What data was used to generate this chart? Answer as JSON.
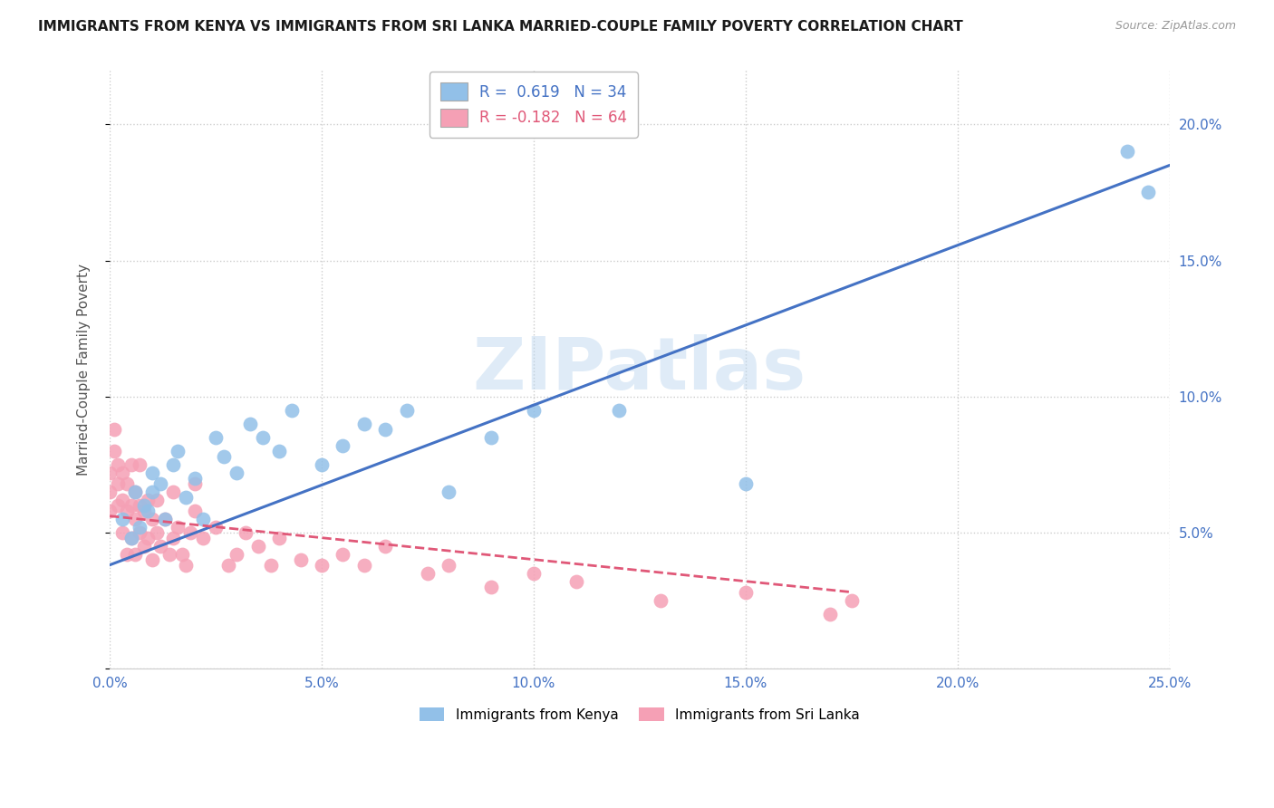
{
  "title": "IMMIGRANTS FROM KENYA VS IMMIGRANTS FROM SRI LANKA MARRIED-COUPLE FAMILY POVERTY CORRELATION CHART",
  "source": "Source: ZipAtlas.com",
  "ylabel": "Married-Couple Family Poverty",
  "xlim": [
    0.0,
    0.25
  ],
  "ylim": [
    0.0,
    0.22
  ],
  "xticks": [
    0.0,
    0.05,
    0.1,
    0.15,
    0.2,
    0.25
  ],
  "xticklabels": [
    "0.0%",
    "5.0%",
    "10.0%",
    "15.0%",
    "20.0%",
    "25.0%"
  ],
  "yticks": [
    0.0,
    0.05,
    0.1,
    0.15,
    0.2
  ],
  "yticklabels": [
    "",
    "5.0%",
    "10.0%",
    "15.0%",
    "20.0%"
  ],
  "kenya_color": "#92c0e8",
  "srilanka_color": "#f5a0b5",
  "kenya_R": 0.619,
  "kenya_N": 34,
  "srilanka_R": -0.182,
  "srilanka_N": 64,
  "kenya_line_color": "#4472c4",
  "srilanka_line_color": "#e05878",
  "watermark_text": "ZIPatlas",
  "kenya_line_x": [
    0.0,
    0.25
  ],
  "kenya_line_y": [
    0.038,
    0.185
  ],
  "srilanka_line_x": [
    0.0,
    0.175
  ],
  "srilanka_line_y": [
    0.056,
    0.028
  ],
  "kenya_scatter_x": [
    0.003,
    0.005,
    0.006,
    0.007,
    0.008,
    0.009,
    0.01,
    0.01,
    0.012,
    0.013,
    0.015,
    0.016,
    0.018,
    0.02,
    0.022,
    0.025,
    0.027,
    0.03,
    0.033,
    0.036,
    0.04,
    0.043,
    0.05,
    0.055,
    0.06,
    0.065,
    0.07,
    0.08,
    0.09,
    0.1,
    0.12,
    0.15,
    0.24,
    0.245
  ],
  "kenya_scatter_y": [
    0.055,
    0.048,
    0.065,
    0.052,
    0.06,
    0.058,
    0.065,
    0.072,
    0.068,
    0.055,
    0.075,
    0.08,
    0.063,
    0.07,
    0.055,
    0.085,
    0.078,
    0.072,
    0.09,
    0.085,
    0.08,
    0.095,
    0.075,
    0.082,
    0.09,
    0.088,
    0.095,
    0.065,
    0.085,
    0.095,
    0.095,
    0.068,
    0.19,
    0.175
  ],
  "srilanka_scatter_x": [
    0.0,
    0.0,
    0.0,
    0.001,
    0.001,
    0.002,
    0.002,
    0.002,
    0.003,
    0.003,
    0.003,
    0.004,
    0.004,
    0.004,
    0.005,
    0.005,
    0.005,
    0.006,
    0.006,
    0.006,
    0.007,
    0.007,
    0.007,
    0.008,
    0.008,
    0.009,
    0.009,
    0.01,
    0.01,
    0.011,
    0.011,
    0.012,
    0.013,
    0.014,
    0.015,
    0.015,
    0.016,
    0.017,
    0.018,
    0.019,
    0.02,
    0.02,
    0.022,
    0.025,
    0.028,
    0.03,
    0.032,
    0.035,
    0.038,
    0.04,
    0.045,
    0.05,
    0.055,
    0.06,
    0.065,
    0.075,
    0.08,
    0.09,
    0.1,
    0.11,
    0.13,
    0.15,
    0.17,
    0.175
  ],
  "srilanka_scatter_y": [
    0.058,
    0.065,
    0.072,
    0.08,
    0.088,
    0.06,
    0.068,
    0.075,
    0.05,
    0.062,
    0.072,
    0.042,
    0.058,
    0.068,
    0.048,
    0.06,
    0.075,
    0.042,
    0.055,
    0.065,
    0.05,
    0.06,
    0.075,
    0.045,
    0.058,
    0.048,
    0.062,
    0.04,
    0.055,
    0.05,
    0.062,
    0.045,
    0.055,
    0.042,
    0.048,
    0.065,
    0.052,
    0.042,
    0.038,
    0.05,
    0.058,
    0.068,
    0.048,
    0.052,
    0.038,
    0.042,
    0.05,
    0.045,
    0.038,
    0.048,
    0.04,
    0.038,
    0.042,
    0.038,
    0.045,
    0.035,
    0.038,
    0.03,
    0.035,
    0.032,
    0.025,
    0.028,
    0.02,
    0.025
  ]
}
